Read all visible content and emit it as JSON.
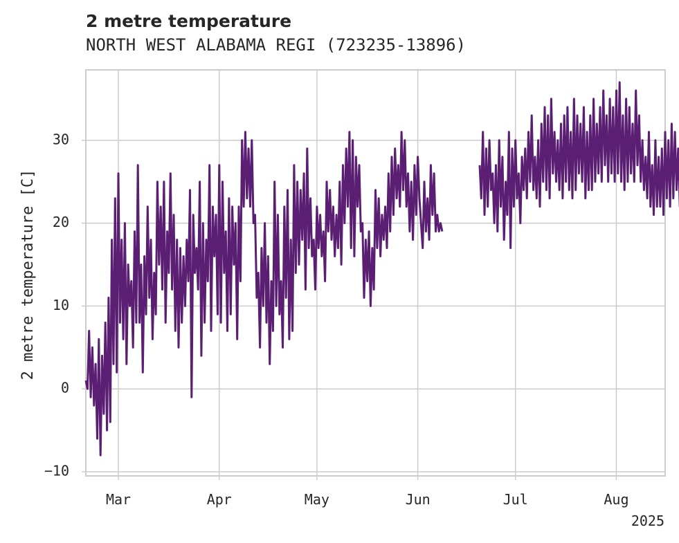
{
  "chart_data": {
    "type": "line",
    "title": "2 metre temperature",
    "subtitle": "NORTH WEST ALABAMA REGI (723235-13896)",
    "xlabel": "",
    "ylabel": "2 metre temperature [C]",
    "x_range": [
      "2025-02-19",
      "2025-08-16"
    ],
    "ylim": [
      -10.5,
      38.5
    ],
    "y_ticks": [
      -10,
      0,
      10,
      20,
      30
    ],
    "x_ticks": [
      {
        "date": "2025-03-01",
        "label": "Mar"
      },
      {
        "date": "2025-04-01",
        "label": "Apr"
      },
      {
        "date": "2025-05-01",
        "label": "May"
      },
      {
        "date": "2025-06-01",
        "label": "Jun"
      },
      {
        "date": "2025-07-01",
        "label": "Jul"
      },
      {
        "date": "2025-08-01",
        "label": "Aug"
      }
    ],
    "x_offset_label": "2025",
    "grid": true,
    "line_color": "#5a1f73",
    "series": [
      {
        "name": "",
        "x_start": "2025-02-19",
        "x_step_days": 0.5,
        "values": [
          1,
          0,
          7,
          -1,
          5,
          -2,
          3,
          -6,
          6,
          -8,
          4,
          -3,
          8,
          -5,
          11,
          -4,
          18,
          3,
          23,
          2,
          26,
          8,
          18,
          6,
          20,
          3,
          15,
          10,
          13,
          5,
          19,
          8,
          27,
          8,
          15,
          2,
          16,
          9,
          22,
          11,
          18,
          6,
          14,
          9,
          25,
          15,
          22,
          12,
          25,
          8,
          19,
          14,
          26,
          12,
          21,
          7,
          18,
          5,
          17,
          8,
          16,
          10,
          18,
          13,
          24,
          -1,
          21,
          14,
          17,
          12,
          25,
          4,
          20,
          8,
          18,
          13,
          27,
          7,
          22,
          16,
          21,
          9,
          27,
          8,
          25,
          14,
          19,
          7,
          23,
          9,
          22,
          15,
          20,
          6,
          22,
          13,
          30,
          22,
          31,
          23,
          29,
          22,
          30,
          20,
          21,
          11,
          14,
          5,
          17,
          10,
          20,
          8,
          16,
          3,
          13,
          7,
          25,
          10,
          21,
          9,
          13,
          5,
          22,
          11,
          24,
          6,
          18,
          7,
          27,
          14,
          25,
          15,
          24,
          18,
          26,
          12,
          29,
          17,
          23,
          16,
          18,
          12,
          22,
          17,
          21,
          16,
          19,
          13,
          25,
          19,
          24,
          18,
          22,
          16,
          21,
          17,
          25,
          15,
          27,
          20,
          29,
          22,
          31,
          17,
          30,
          16,
          28,
          22,
          27,
          19,
          20,
          11,
          18,
          13,
          19,
          10,
          17,
          12,
          24,
          17,
          23,
          16,
          21,
          18,
          22,
          17,
          26,
          19,
          28,
          21,
          29,
          23,
          27,
          22,
          31,
          24,
          30,
          22,
          26,
          19,
          25,
          18,
          27,
          21,
          28,
          23,
          20,
          17,
          25,
          19,
          23,
          18,
          27,
          21,
          26,
          19,
          21,
          19,
          20,
          19,
          null,
          null,
          null,
          null,
          null,
          null,
          null,
          null,
          null,
          null,
          null,
          null,
          null,
          null,
          null,
          null,
          null,
          null,
          null,
          null,
          null,
          null,
          27,
          23,
          31,
          21,
          29,
          22,
          30,
          24,
          26,
          20,
          27,
          19,
          30,
          22,
          28,
          18,
          25,
          21,
          31,
          17,
          29,
          22,
          30,
          23,
          26,
          20,
          28,
          24,
          29,
          23,
          31,
          25,
          33,
          24,
          28,
          23,
          30,
          22,
          32,
          25,
          34,
          24,
          33,
          23,
          35,
          26,
          31,
          25,
          30,
          24,
          32,
          23,
          33,
          25,
          34,
          24,
          31,
          23,
          35,
          24,
          33,
          26,
          32,
          25,
          34,
          23,
          31,
          24,
          33,
          24,
          35,
          25,
          32,
          26,
          34,
          25,
          36,
          27,
          33,
          25,
          35,
          26,
          34,
          25,
          36,
          26,
          37,
          25,
          33,
          24,
          35,
          25,
          34,
          26,
          32,
          25,
          36,
          27,
          33,
          25,
          30,
          24,
          28,
          23,
          31,
          22,
          27,
          21,
          30,
          22,
          28,
          22,
          29,
          21,
          31,
          23,
          30,
          22,
          32,
          23,
          31,
          24,
          29,
          22,
          33,
          27
        ]
      }
    ]
  }
}
